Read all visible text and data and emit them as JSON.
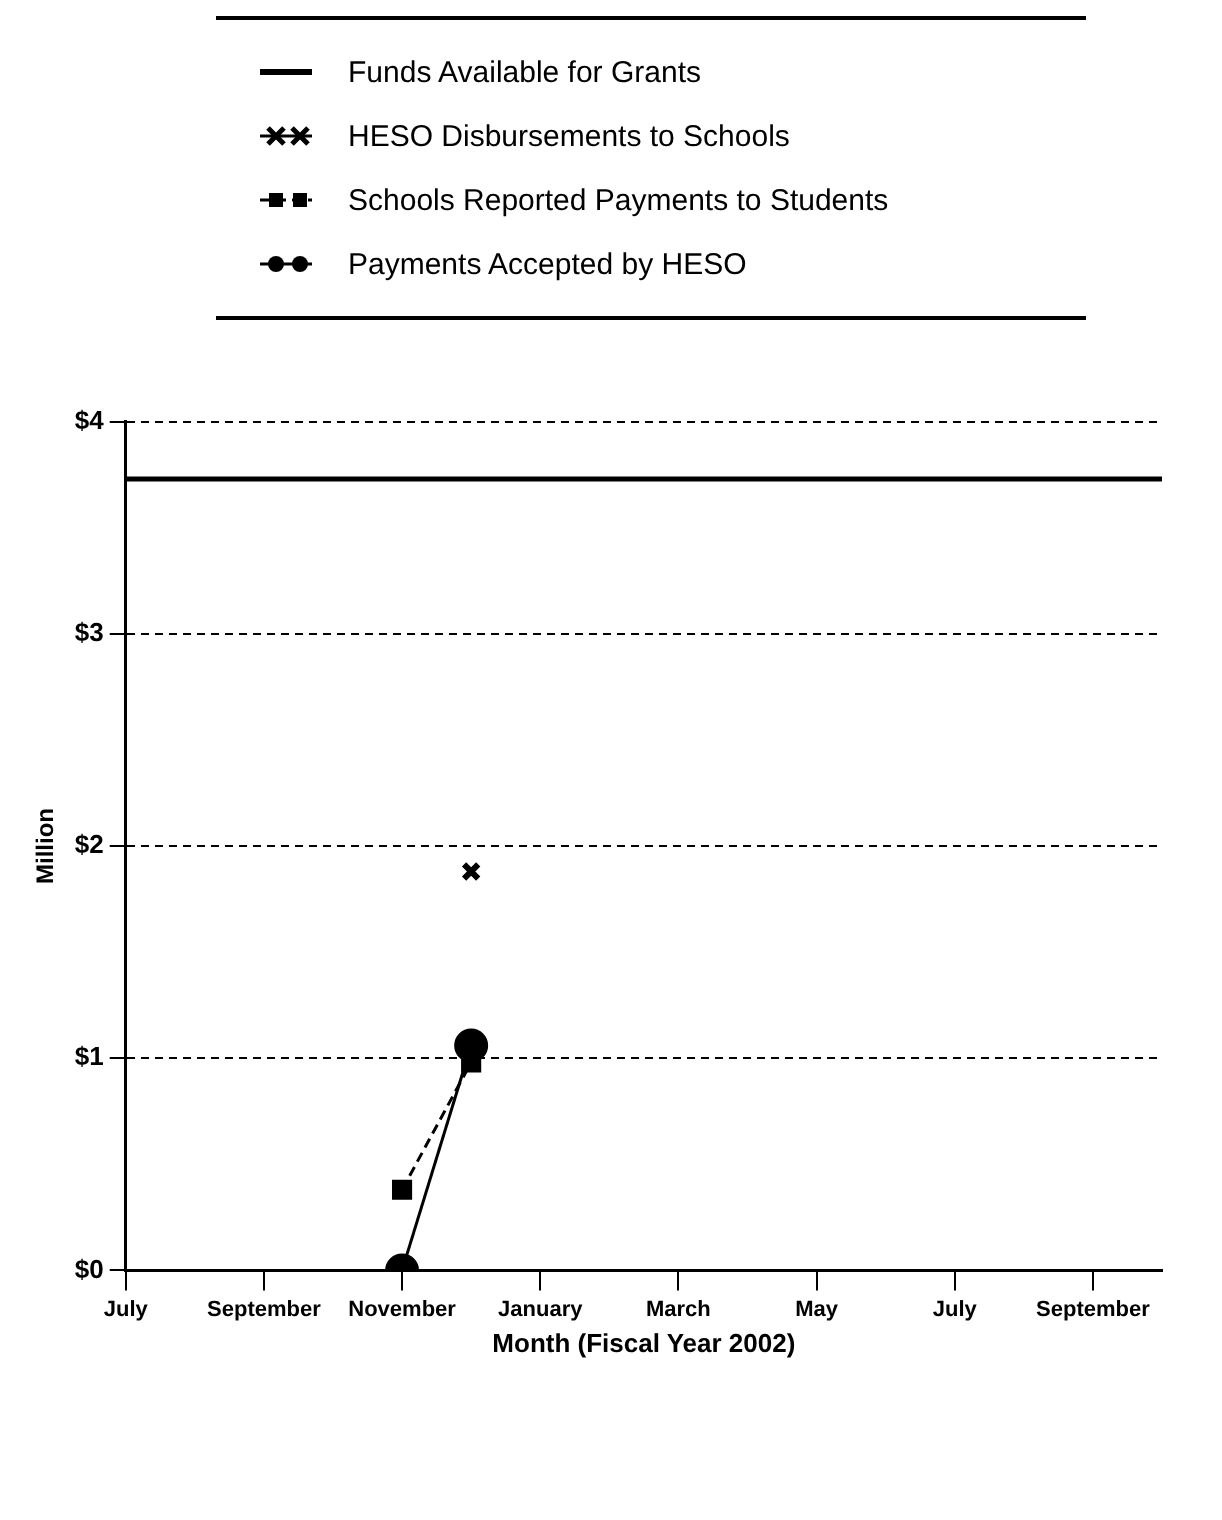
{
  "chart_data": {
    "type": "line",
    "xlabel": "Month (Fiscal Year 2002)",
    "ylabel": "Million",
    "xlim": [
      "2001-07",
      "2002-10"
    ],
    "xticks": [
      {
        "value": "2001-07",
        "label": "July"
      },
      {
        "value": "2001-09",
        "label": "September"
      },
      {
        "value": "2001-11",
        "label": "November"
      },
      {
        "value": "2002-01",
        "label": "January"
      },
      {
        "value": "2002-03",
        "label": "March"
      },
      {
        "value": "2002-05",
        "label": "May"
      },
      {
        "value": "2002-07",
        "label": "July"
      },
      {
        "value": "2002-09",
        "label": "September"
      }
    ],
    "ylim": [
      0,
      4
    ],
    "yticks": [
      {
        "value": 0,
        "label": "$0"
      },
      {
        "value": 1,
        "label": "$1"
      },
      {
        "value": 2,
        "label": "$2"
      },
      {
        "value": 3,
        "label": "$3"
      },
      {
        "value": 4,
        "label": "$4"
      }
    ],
    "grid": "y",
    "legend": "top",
    "series": [
      {
        "name": "Funds Available for Grants",
        "color": "#000000",
        "marker": "none",
        "line_style": "solid",
        "x": [
          "2001-07",
          "2002-10"
        ],
        "values": [
          3.73,
          3.73
        ]
      },
      {
        "name": "HESO Disbursements to Schools",
        "color": "#000000",
        "marker": "cross",
        "line_style": "solid",
        "x": [
          "2001-12"
        ],
        "values": [
          1.88
        ]
      },
      {
        "name": "Schools Reported Payments to Students",
        "color": "#000000",
        "marker": "square",
        "line_style": "dashed",
        "x": [
          "2001-11",
          "2001-12"
        ],
        "values": [
          0.38,
          0.98
        ]
      },
      {
        "name": "Payments Accepted by HESO",
        "color": "#000000",
        "marker": "circle",
        "line_style": "solid",
        "x": [
          "2001-11",
          "2001-12"
        ],
        "values": [
          0,
          1.06
        ]
      }
    ]
  }
}
